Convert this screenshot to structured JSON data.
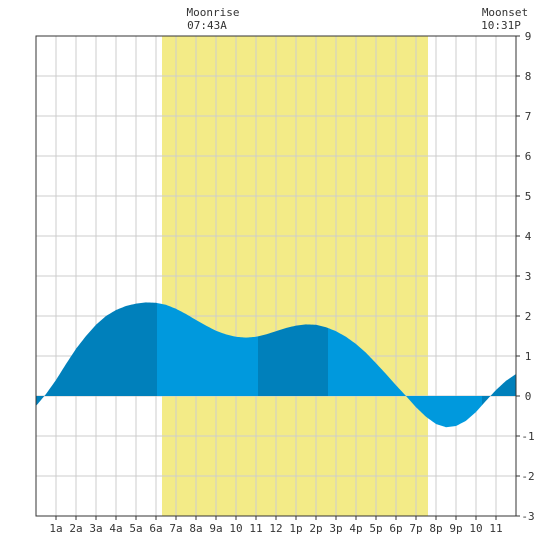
{
  "annotations": {
    "moonrise_label": "Moonrise",
    "moonrise_time": "07:43A",
    "moonset_label": "Moonset",
    "moonset_time": "10:31P"
  },
  "colors": {
    "background": "#ffffff",
    "grid": "#cccccc",
    "moon_band": "#f3eb87",
    "tide_light": "#0099dd",
    "tide_dark": "#0080bb",
    "axis_text": "#333333"
  },
  "chart_data": {
    "type": "area",
    "title": "",
    "xlabel": "",
    "ylabel": "",
    "xlim": [
      0,
      24
    ],
    "ylim": [
      -3,
      9
    ],
    "grid": true,
    "y_axis_position": "right",
    "x_ticks": [
      {
        "hour": 1,
        "label": "1a"
      },
      {
        "hour": 2,
        "label": "2a"
      },
      {
        "hour": 3,
        "label": "3a"
      },
      {
        "hour": 4,
        "label": "4a"
      },
      {
        "hour": 5,
        "label": "5a"
      },
      {
        "hour": 6,
        "label": "6a"
      },
      {
        "hour": 7,
        "label": "7a"
      },
      {
        "hour": 8,
        "label": "8a"
      },
      {
        "hour": 9,
        "label": "9a"
      },
      {
        "hour": 10,
        "label": "10"
      },
      {
        "hour": 11,
        "label": "11"
      },
      {
        "hour": 12,
        "label": "12"
      },
      {
        "hour": 13,
        "label": "1p"
      },
      {
        "hour": 14,
        "label": "2p"
      },
      {
        "hour": 15,
        "label": "3p"
      },
      {
        "hour": 16,
        "label": "4p"
      },
      {
        "hour": 17,
        "label": "5p"
      },
      {
        "hour": 18,
        "label": "6p"
      },
      {
        "hour": 19,
        "label": "7p"
      },
      {
        "hour": 20,
        "label": "8p"
      },
      {
        "hour": 21,
        "label": "9p"
      },
      {
        "hour": 22,
        "label": "10"
      },
      {
        "hour": 23,
        "label": "11"
      }
    ],
    "y_ticks": [
      -3,
      -2,
      -1,
      0,
      1,
      2,
      3,
      4,
      5,
      6,
      7,
      8,
      9
    ],
    "moon_band": {
      "start_hour": 6.3,
      "end_hour": 19.6
    },
    "series": [
      {
        "x": [
          0,
          0.5,
          1,
          1.5,
          2,
          2.5,
          3,
          3.5,
          4,
          4.5,
          5,
          5.5,
          6,
          6.5,
          7,
          7.5,
          8,
          8.5,
          9,
          9.5,
          10,
          10.5,
          11,
          11.5,
          12,
          12.5,
          13,
          13.5,
          14,
          14.5,
          15,
          15.5,
          16,
          16.5,
          17,
          17.5,
          18,
          18.5,
          19,
          19.5,
          20,
          20.5,
          21,
          21.5,
          22,
          22.5,
          23,
          23.5,
          24
        ],
        "values": [
          -0.25,
          0.05,
          0.4,
          0.8,
          1.18,
          1.5,
          1.78,
          2.0,
          2.15,
          2.25,
          2.31,
          2.34,
          2.33,
          2.28,
          2.18,
          2.05,
          1.9,
          1.76,
          1.63,
          1.54,
          1.48,
          1.46,
          1.48,
          1.54,
          1.62,
          1.7,
          1.76,
          1.79,
          1.78,
          1.72,
          1.62,
          1.48,
          1.3,
          1.08,
          0.82,
          0.55,
          0.27,
          0.0,
          -0.28,
          -0.52,
          -0.7,
          -0.78,
          -0.75,
          -0.62,
          -0.4,
          -0.12,
          0.15,
          0.38,
          0.55
        ]
      }
    ],
    "tide_bands": [
      {
        "start_hour": 0,
        "end_hour": 0.45,
        "shade": "dark"
      },
      {
        "start_hour": 0.45,
        "end_hour": 6.05,
        "shade": "dark"
      },
      {
        "start_hour": 6.05,
        "end_hour": 11.1,
        "shade": "light"
      },
      {
        "start_hour": 11.1,
        "end_hour": 14.6,
        "shade": "dark"
      },
      {
        "start_hour": 14.6,
        "end_hour": 20.2,
        "shade": "light"
      },
      {
        "start_hour": 20.2,
        "end_hour": 22.3,
        "shade": "light"
      },
      {
        "start_hour": 22.3,
        "end_hour": 24,
        "shade": "dark"
      }
    ]
  }
}
